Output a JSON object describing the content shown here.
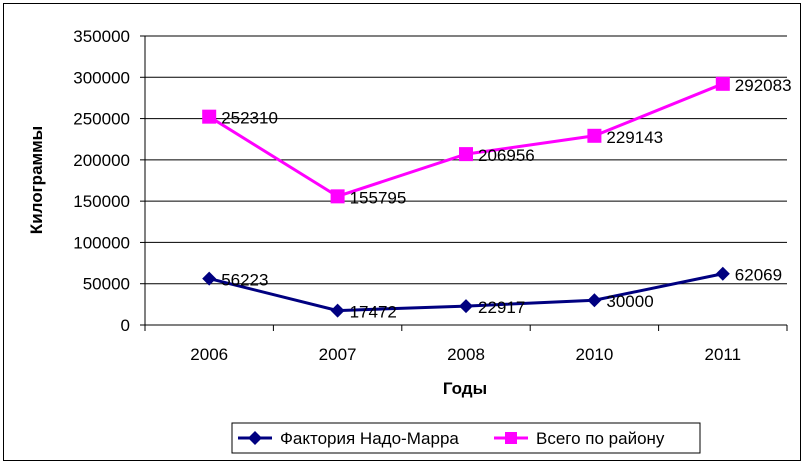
{
  "chart_data": {
    "type": "line",
    "categories": [
      "2006",
      "2007",
      "2008",
      "2010",
      "2011"
    ],
    "series": [
      {
        "name": "Фактория Надо-Марра",
        "values": [
          56223,
          17472,
          22917,
          30000,
          62069
        ],
        "color": "#000080",
        "marker": "diamond"
      },
      {
        "name": "Всего по району",
        "values": [
          252310,
          155795,
          206956,
          229143,
          292083
        ],
        "color": "#FF00FF",
        "marker": "square"
      }
    ],
    "xlabel": "Годы",
    "ylabel": "Килограммы",
    "ylim": [
      0,
      350000
    ],
    "yticks": [
      "0",
      "50000",
      "100000",
      "150000",
      "200000",
      "250000",
      "300000",
      "350000"
    ],
    "grid": "horizontal",
    "legend": "bottom"
  }
}
